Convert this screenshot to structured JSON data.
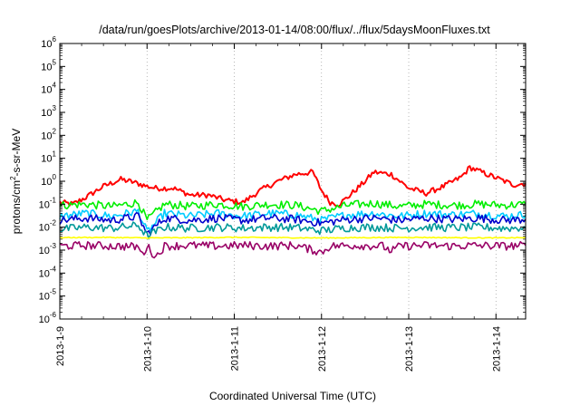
{
  "chart_data": {
    "type": "line",
    "title": "/data/run/goesPlots/archive/2013-01-14/08:00/flux/../flux/5daysMoonFluxes.txt",
    "xlabel": "Coordinated Universal Time (UTC)",
    "ylabel_parts": [
      "protons/cm",
      "2",
      "-s-sr-MeV"
    ],
    "yscale": "log",
    "ylim_exp": [
      -6,
      6
    ],
    "y_tick_labels": [
      {
        "base": "10",
        "exp": "6"
      },
      {
        "base": "10",
        "exp": "5"
      },
      {
        "base": "10",
        "exp": "4"
      },
      {
        "base": "10",
        "exp": "3"
      },
      {
        "base": "10",
        "exp": "2"
      },
      {
        "base": "10",
        "exp": "1"
      },
      {
        "base": "10",
        "exp": "0"
      },
      {
        "base": "10",
        "exp": "-1"
      },
      {
        "base": "10",
        "exp": "-2"
      },
      {
        "base": "10",
        "exp": "-3"
      },
      {
        "base": "10",
        "exp": "-4"
      },
      {
        "base": "10",
        "exp": "-5"
      },
      {
        "base": "10",
        "exp": "-6"
      }
    ],
    "xlim_days": [
      0,
      5.34
    ],
    "x_ticks": [
      {
        "day": 0,
        "label": "2013-1-9"
      },
      {
        "day": 1,
        "label": "2013-1-10"
      },
      {
        "day": 2,
        "label": "2013-1-11"
      },
      {
        "day": 3,
        "label": "2013-1-12"
      },
      {
        "day": 4,
        "label": "2013-1-13"
      },
      {
        "day": 5,
        "label": "2013-1-14"
      }
    ],
    "grid": true,
    "legend": "none",
    "series": [
      {
        "color": "#ff0000",
        "width": 2,
        "points": [
          [
            0,
            0.12
          ],
          [
            0.15,
            0.1
          ],
          [
            0.3,
            0.2
          ],
          [
            0.5,
            0.6
          ],
          [
            0.7,
            1.2
          ],
          [
            0.85,
            0.9
          ],
          [
            1.0,
            0.6
          ],
          [
            1.1,
            0.5
          ],
          [
            1.3,
            0.5
          ],
          [
            1.5,
            0.25
          ],
          [
            1.7,
            0.25
          ],
          [
            1.9,
            0.15
          ],
          [
            2.1,
            0.12
          ],
          [
            2.3,
            0.4
          ],
          [
            2.5,
            1.0
          ],
          [
            2.7,
            2.0
          ],
          [
            2.9,
            2.5
          ],
          [
            3.0,
            0.4
          ],
          [
            3.1,
            0.12
          ],
          [
            3.2,
            0.1
          ],
          [
            3.3,
            0.2
          ],
          [
            3.5,
            1.0
          ],
          [
            3.6,
            2.5
          ],
          [
            3.8,
            2.0
          ],
          [
            3.9,
            1.0
          ],
          [
            4.0,
            0.5
          ],
          [
            4.2,
            0.3
          ],
          [
            4.4,
            0.6
          ],
          [
            4.6,
            1.5
          ],
          [
            4.7,
            4.0
          ],
          [
            4.9,
            2.0
          ],
          [
            5.1,
            1.0
          ],
          [
            5.2,
            0.7
          ],
          [
            5.34,
            0.8
          ]
        ]
      },
      {
        "color": "#00ee00",
        "width": 1.6,
        "points": [
          [
            0,
            0.09
          ],
          [
            0.3,
            0.1
          ],
          [
            0.6,
            0.08
          ],
          [
            0.9,
            0.12
          ],
          [
            1.0,
            0.02
          ],
          [
            1.2,
            0.1
          ],
          [
            1.5,
            0.08
          ],
          [
            1.8,
            0.1
          ],
          [
            2.1,
            0.08
          ],
          [
            2.4,
            0.1
          ],
          [
            2.7,
            0.09
          ],
          [
            3.0,
            0.05
          ],
          [
            3.3,
            0.09
          ],
          [
            3.6,
            0.11
          ],
          [
            3.9,
            0.08
          ],
          [
            4.2,
            0.1
          ],
          [
            4.5,
            0.09
          ],
          [
            4.8,
            0.1
          ],
          [
            5.1,
            0.09
          ],
          [
            5.34,
            0.1
          ]
        ]
      },
      {
        "color": "#00ccff",
        "width": 1.6,
        "points": [
          [
            0,
            0.03
          ],
          [
            0.3,
            0.04
          ],
          [
            0.6,
            0.03
          ],
          [
            0.9,
            0.05
          ],
          [
            1.0,
            0.006
          ],
          [
            1.2,
            0.04
          ],
          [
            1.5,
            0.03
          ],
          [
            1.8,
            0.04
          ],
          [
            2.1,
            0.03
          ],
          [
            2.4,
            0.04
          ],
          [
            2.7,
            0.035
          ],
          [
            3.0,
            0.02
          ],
          [
            3.3,
            0.035
          ],
          [
            3.6,
            0.04
          ],
          [
            3.9,
            0.03
          ],
          [
            4.2,
            0.04
          ],
          [
            4.5,
            0.035
          ],
          [
            4.8,
            0.04
          ],
          [
            5.1,
            0.03
          ],
          [
            5.34,
            0.035
          ]
        ]
      },
      {
        "color": "#0000cc",
        "width": 1.6,
        "points": [
          [
            0,
            0.02
          ],
          [
            0.3,
            0.025
          ],
          [
            0.6,
            0.02
          ],
          [
            0.9,
            0.03
          ],
          [
            1.0,
            0.005
          ],
          [
            1.2,
            0.025
          ],
          [
            1.5,
            0.02
          ],
          [
            1.8,
            0.025
          ],
          [
            2.1,
            0.02
          ],
          [
            2.4,
            0.025
          ],
          [
            2.7,
            0.022
          ],
          [
            3.0,
            0.015
          ],
          [
            3.3,
            0.022
          ],
          [
            3.6,
            0.025
          ],
          [
            3.9,
            0.02
          ],
          [
            4.2,
            0.025
          ],
          [
            4.5,
            0.022
          ],
          [
            4.8,
            0.025
          ],
          [
            5.1,
            0.02
          ],
          [
            5.34,
            0.022
          ]
        ]
      },
      {
        "color": "#009999",
        "width": 1.6,
        "points": [
          [
            0,
            0.008
          ],
          [
            0.3,
            0.01
          ],
          [
            0.6,
            0.009
          ],
          [
            0.9,
            0.012
          ],
          [
            1.0,
            0.004
          ],
          [
            1.2,
            0.01
          ],
          [
            1.5,
            0.009
          ],
          [
            1.8,
            0.01
          ],
          [
            2.1,
            0.009
          ],
          [
            2.4,
            0.01
          ],
          [
            2.7,
            0.0095
          ],
          [
            3.0,
            0.007
          ],
          [
            3.3,
            0.0095
          ],
          [
            3.6,
            0.01
          ],
          [
            3.9,
            0.009
          ],
          [
            4.2,
            0.01
          ],
          [
            4.5,
            0.0095
          ],
          [
            4.8,
            0.01
          ],
          [
            5.1,
            0.009
          ],
          [
            5.34,
            0.0095
          ]
        ]
      },
      {
        "color": "#ffff00",
        "width": 1.6,
        "points": [
          [
            0,
            0.0035
          ],
          [
            0.5,
            0.0036
          ],
          [
            1.0,
            0.0034
          ],
          [
            1.5,
            0.0035
          ],
          [
            2.0,
            0.0036
          ],
          [
            2.5,
            0.0035
          ],
          [
            3.0,
            0.0034
          ],
          [
            3.5,
            0.0035
          ],
          [
            4.0,
            0.0036
          ],
          [
            4.5,
            0.0035
          ],
          [
            5.0,
            0.0034
          ],
          [
            5.34,
            0.0035
          ]
        ]
      },
      {
        "color": "#990066",
        "width": 1.6,
        "points": [
          [
            0,
            0.0015
          ],
          [
            0.3,
            0.0016
          ],
          [
            0.6,
            0.0015
          ],
          [
            0.9,
            0.0014
          ],
          [
            0.95,
            0.0006
          ],
          [
            1.0,
            0.0015
          ],
          [
            1.1,
            0.0005
          ],
          [
            1.2,
            0.0015
          ],
          [
            1.5,
            0.0016
          ],
          [
            1.8,
            0.0015
          ],
          [
            2.1,
            0.0016
          ],
          [
            2.4,
            0.0015
          ],
          [
            2.7,
            0.0016
          ],
          [
            3.0,
            0.0008
          ],
          [
            3.1,
            0.0015
          ],
          [
            3.4,
            0.0016
          ],
          [
            3.7,
            0.0015
          ],
          [
            3.8,
            0.0009
          ],
          [
            3.9,
            0.0015
          ],
          [
            4.2,
            0.0016
          ],
          [
            4.5,
            0.0015
          ],
          [
            4.8,
            0.0016
          ],
          [
            5.1,
            0.0015
          ],
          [
            5.34,
            0.0016
          ]
        ]
      }
    ]
  }
}
